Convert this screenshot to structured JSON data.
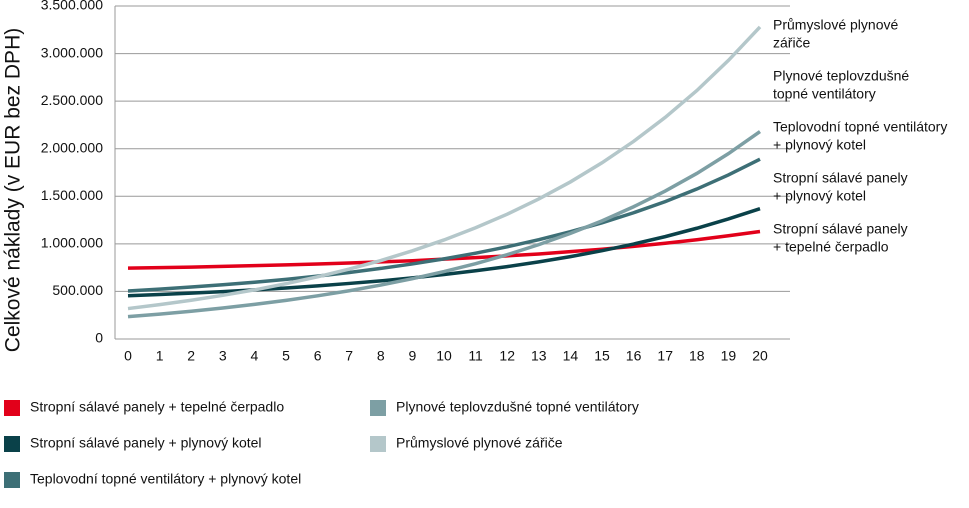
{
  "chart_data": {
    "type": "line",
    "y_label": "Celkové náklady (v EUR bez DPH)",
    "x": [
      0,
      1,
      2,
      3,
      4,
      5,
      6,
      7,
      8,
      9,
      10,
      11,
      12,
      13,
      14,
      15,
      16,
      17,
      18,
      19,
      20
    ],
    "xlim": [
      0,
      20
    ],
    "ylim": [
      0,
      3500000
    ],
    "yticks": [
      0,
      {
        "value": 500000,
        "label": "500.000"
      },
      {
        "value": 1000000,
        "label": "1.000.000"
      },
      {
        "value": 1500000,
        "label": "1.500.000"
      },
      {
        "value": 2000000,
        "label": "2.000.000"
      },
      {
        "value": 2500000,
        "label": "2.500.000"
      },
      {
        "value": 3000000,
        "label": "3.000.000"
      },
      {
        "value": 3500000,
        "label": "3.500.000"
      }
    ],
    "grid": true,
    "series": [
      {
        "name": "Stropní sálavé panely + tepelné čerpadlo",
        "color": "#e2001a",
        "values": [
          745000,
          750000,
          756000,
          763000,
          771000,
          779000,
          788000,
          799000,
          810000,
          823000,
          839000,
          855000,
          874000,
          894000,
          918000,
          944000,
          974000,
          1006000,
          1043000,
          1085000,
          1130000
        ]
      },
      {
        "name": "Stropní sálavé panely + plynový kotel",
        "color": "#0a4149",
        "values": [
          455000,
          468000,
          482000,
          498000,
          516000,
          536000,
          558000,
          584000,
          611000,
          643000,
          678000,
          717000,
          761000,
          811000,
          866000,
          928000,
          998000,
          1076000,
          1164000,
          1262000,
          1370000
        ]
      },
      {
        "name": "Teplovodní topné ventilátory + plynový kotel",
        "color": "#3d6f76",
        "values": [
          505000,
          524000,
          546000,
          570000,
          597000,
          627000,
          661000,
          699000,
          742000,
          789000,
          842000,
          902000,
          969000,
          1044000,
          1128000,
          1221000,
          1327000,
          1444000,
          1576000,
          1724000,
          1890000
        ]
      },
      {
        "name": "Plynové teplovzdušné topné ventilátory",
        "color": "#7d9fa4",
        "values": [
          235000,
          262000,
          292000,
          326000,
          364000,
          406000,
          454000,
          507000,
          567000,
          634000,
          709000,
          792000,
          886000,
          992000,
          1110000,
          1242000,
          1390000,
          1555000,
          1740000,
          1948000,
          2180000
        ]
      },
      {
        "name": "Průmyslové plynové zářiče",
        "color": "#b4c7ca",
        "values": [
          320000,
          361000,
          407000,
          459000,
          516000,
          581000,
          654000,
          735000,
          825000,
          927000,
          1041000,
          1169000,
          1312000,
          1472000,
          1651000,
          1852000,
          2077000,
          2329000,
          2611000,
          2928000,
          3280000
        ]
      }
    ],
    "annotations": [
      [
        "Průmyslové plynové",
        "zářiče"
      ],
      [
        "Plynové teplovzdušné",
        "topné ventilátory"
      ],
      [
        "Teplovodní topné ventilátory",
        "+ plynový kotel"
      ],
      [
        "Stropní sálavé panely",
        "+ plynový kotel"
      ],
      [
        "Stropní sálavé panely",
        "+ tepelné čerpadlo"
      ]
    ]
  }
}
